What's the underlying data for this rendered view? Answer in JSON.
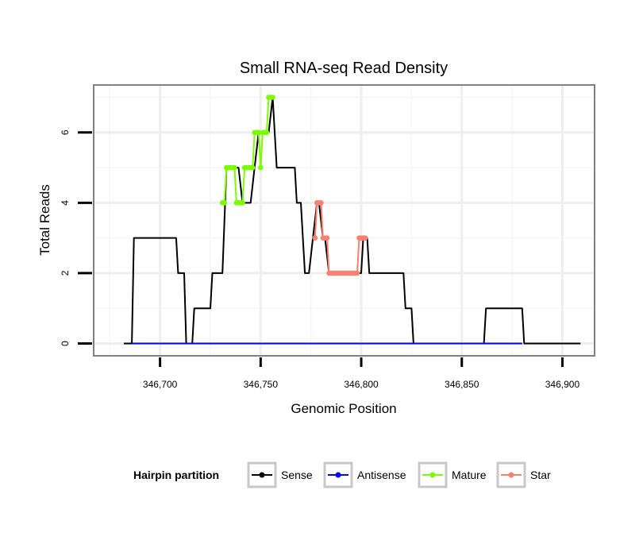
{
  "chart_data": {
    "type": "line",
    "title": "Small RNA-seq Read Density",
    "xlabel": "Genomic Position",
    "ylabel": "Total Reads",
    "xlim": [
      346667,
      346916
    ],
    "ylim": [
      -0.35,
      7.35
    ],
    "x_ticks": [
      346700,
      346750,
      346800,
      346850,
      346900
    ],
    "x_tick_labels": [
      "346,700",
      "346,750",
      "346,800",
      "346,850",
      "346,900"
    ],
    "y_ticks": [
      0,
      2,
      4,
      6
    ],
    "y_tick_labels": [
      "0",
      "2",
      "4",
      "6"
    ],
    "grid": true,
    "legend": {
      "title": "Hairpin partition",
      "position": "bottom",
      "entries": [
        {
          "label": "Sense",
          "color": "#000000"
        },
        {
          "label": "Antisense",
          "color": "#0000ff"
        },
        {
          "label": "Mature",
          "color": "#7cfc00"
        },
        {
          "label": "Star",
          "color": "#fa8072"
        }
      ]
    },
    "series": [
      {
        "name": "Sense",
        "color": "#000000",
        "x": [
          346682,
          346686,
          346687,
          346708,
          346709,
          346712,
          346713,
          346714,
          346716,
          346717,
          346725,
          346726,
          346731,
          346733,
          346739,
          346741,
          346745,
          346747,
          346749,
          346751,
          346752,
          346754,
          346756,
          346758,
          346767,
          346768,
          346770,
          346772,
          346774,
          346776,
          346778,
          346779,
          346781,
          346782,
          346784,
          346785,
          346800,
          346801,
          346803,
          346804,
          346821,
          346822,
          346825,
          346826,
          346861,
          346862,
          346880,
          346881,
          346909
        ],
        "y": [
          0,
          0,
          3,
          3,
          2,
          2,
          0,
          0,
          0,
          1,
          1,
          2,
          2,
          5,
          5,
          4,
          4,
          5,
          6,
          6,
          6,
          6,
          7,
          5,
          5,
          4,
          4,
          2,
          2,
          3,
          4,
          4,
          3,
          3,
          2,
          2,
          2,
          3,
          3,
          2,
          2,
          1,
          1,
          0,
          0,
          1,
          1,
          0,
          0
        ]
      },
      {
        "name": "Antisense",
        "color": "#0000ff",
        "x": [
          346686,
          346880
        ],
        "y": [
          0,
          0
        ]
      },
      {
        "name": "Mature",
        "color": "#7cfc00",
        "x": [
          346731,
          346732,
          346733,
          346734,
          346735,
          346736,
          346737,
          346738,
          346739,
          346740,
          346741,
          346742,
          346743,
          346744,
          346745,
          346746,
          346747,
          346748,
          346749,
          346750,
          346751,
          346752,
          346753,
          346754,
          346755,
          346756
        ],
        "y": [
          4,
          4,
          5,
          5,
          5,
          5,
          5,
          4,
          4,
          4,
          4,
          5,
          5,
          5,
          5,
          5,
          6,
          6,
          6,
          5,
          6,
          6,
          6,
          7,
          7,
          7
        ]
      },
      {
        "name": "Star",
        "color": "#fa8072",
        "x": [
          346777,
          346778,
          346779,
          346780,
          346781,
          346782,
          346783,
          346784,
          346785,
          346786,
          346787,
          346788,
          346789,
          346790,
          346791,
          346792,
          346793,
          346794,
          346795,
          346796,
          346797,
          346798,
          346799,
          346800,
          346801,
          346802
        ],
        "y": [
          3,
          4,
          4,
          4,
          3,
          3,
          3,
          2,
          2,
          2,
          2,
          2,
          2,
          2,
          2,
          2,
          2,
          2,
          2,
          2,
          2,
          2,
          3,
          3,
          3,
          3
        ]
      }
    ]
  }
}
